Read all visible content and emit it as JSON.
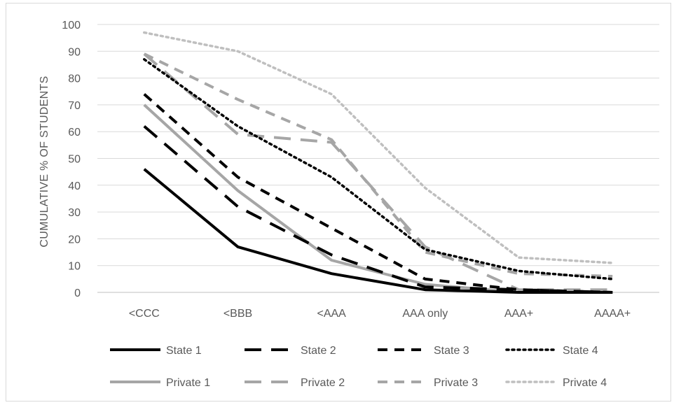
{
  "chart_data": {
    "type": "line",
    "title": "",
    "xlabel": "",
    "ylabel": "CUMULATIVE % OF STUDENTS",
    "ylim": [
      0,
      100
    ],
    "yticks": [
      "0",
      "10",
      "20",
      "30",
      "40",
      "50",
      "60",
      "70",
      "80",
      "90",
      "100"
    ],
    "categories": [
      "<CCC",
      "<BBB",
      "<AAA",
      "AAA only",
      "AAA+",
      "AAAA+"
    ],
    "grid": "horizontal",
    "legend_position": "bottom",
    "series": [
      {
        "name": "State 1",
        "values": [
          46,
          17,
          7,
          1,
          0,
          0
        ],
        "color": "#000000",
        "style": "solid"
      },
      {
        "name": "State 2",
        "values": [
          62,
          32,
          14,
          2,
          1,
          0
        ],
        "color": "#000000",
        "style": "long-dash"
      },
      {
        "name": "State 3",
        "values": [
          74,
          43,
          24,
          5,
          1,
          0
        ],
        "color": "#000000",
        "style": "dash"
      },
      {
        "name": "State 4",
        "values": [
          87,
          62,
          43,
          16,
          8,
          5
        ],
        "color": "#000000",
        "style": "dot"
      },
      {
        "name": "Private 1",
        "values": [
          70,
          38,
          12,
          3,
          0,
          0
        ],
        "color": "#a6a6a6",
        "style": "solid"
      },
      {
        "name": "Private 2",
        "values": [
          89,
          59,
          56,
          17,
          1,
          1
        ],
        "color": "#a6a6a6",
        "style": "long-dash"
      },
      {
        "name": "Private 3",
        "values": [
          89,
          72,
          57,
          15,
          7,
          6
        ],
        "color": "#a6a6a6",
        "style": "dash"
      },
      {
        "name": "Private 4",
        "values": [
          97,
          90,
          74,
          39,
          13,
          11
        ],
        "color": "#bfbfbf",
        "style": "dot"
      }
    ]
  }
}
